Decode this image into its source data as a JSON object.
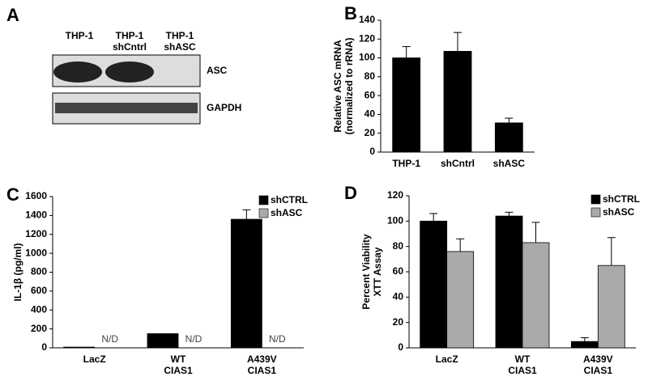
{
  "panel_labels": [
    "A",
    "B",
    "C",
    "D"
  ],
  "blot": {
    "lanes": [
      "THP-1",
      "THP-1\nshCntrl",
      "THP-1\nshASC"
    ],
    "bands": [
      "ASC",
      "GAPDH"
    ]
  },
  "chart_data": [
    {
      "type": "bar",
      "ylabel": [
        "Relative ASC mRNA",
        "(normalized to rRNA)"
      ],
      "categories": [
        "THP-1",
        "shCntrl",
        "shASC"
      ],
      "values": [
        100,
        107,
        31
      ],
      "errors": [
        12,
        20,
        5
      ],
      "color": "#000000",
      "ylim": [
        0,
        140
      ],
      "yticks": [
        0,
        20,
        40,
        60,
        80,
        100,
        120,
        140
      ]
    },
    {
      "type": "bar",
      "ylabel": [
        "IL-1β (pg/ml)"
      ],
      "categories": [
        "LacZ",
        "WT\nCIAS1",
        "A439V\nCIAS1"
      ],
      "series": [
        {
          "name": "shCTRL",
          "color": "#000000",
          "values": [
            8,
            150,
            1360
          ],
          "errors": [
            null,
            null,
            100
          ]
        },
        {
          "name": "shASC",
          "color": "#aaaaaa",
          "values": [
            null,
            null,
            null
          ],
          "value_labels": [
            "N/D",
            "N/D",
            "N/D"
          ]
        }
      ],
      "ylim": [
        0,
        1600
      ],
      "yticks": [
        0,
        200,
        400,
        600,
        800,
        1000,
        1200,
        1400,
        1600
      ],
      "legend": "upper right"
    },
    {
      "type": "bar",
      "ylabel": [
        "Percent Viability",
        "XTT Assay"
      ],
      "categories": [
        "LacZ",
        "WT\nCIAS1",
        "A439V\nCIAS1"
      ],
      "series": [
        {
          "name": "shCTRL",
          "color": "#000000",
          "values": [
            100,
            104,
            5
          ],
          "errors": [
            6,
            3,
            3
          ]
        },
        {
          "name": "shASC",
          "color": "#aaaaaa",
          "values": [
            76,
            83,
            65
          ],
          "errors": [
            10,
            16,
            22
          ]
        }
      ],
      "ylim": [
        0,
        120
      ],
      "yticks": [
        0,
        20,
        40,
        60,
        80,
        100,
        120
      ],
      "legend": "upper right"
    }
  ]
}
